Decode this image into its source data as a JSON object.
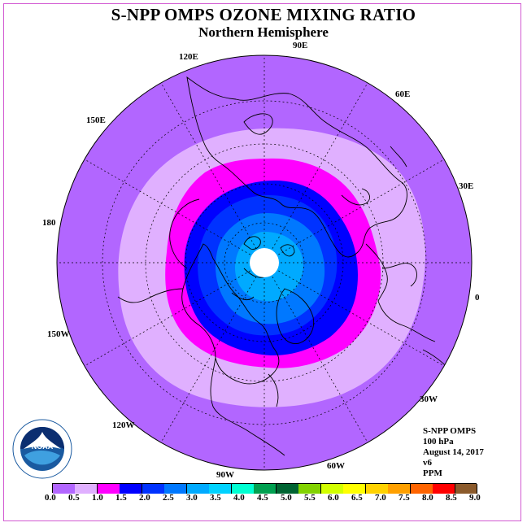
{
  "title": "S-NPP OMPS OZONE MIXING RATIO",
  "subtitle": "Northern Hemisphere",
  "longitude_labels": [
    "90E",
    "60E",
    "30E",
    "0",
    "30W",
    "60W",
    "90W",
    "120W",
    "150W",
    "180",
    "150E",
    "120E"
  ],
  "info": {
    "line1": "S-NPP OMPS",
    "line2": "100 hPa",
    "line3": "August 14, 2017",
    "line4": "v6",
    "line5": "PPM"
  },
  "logo_text": "NOAA",
  "logo_ring_text": "NATIONAL OCEANIC AND ATMOSPHERIC ADMINISTRATION · U.S. DEPARTMENT OF COMMERCE",
  "colorbar": {
    "ticks": [
      "0.0",
      "0.5",
      "1.0",
      "1.5",
      "2.0",
      "2.5",
      "3.0",
      "3.5",
      "4.0",
      "4.5",
      "5.0",
      "5.5",
      "6.0",
      "6.5",
      "7.0",
      "7.5",
      "8.0",
      "8.5",
      "9.0"
    ],
    "colors": [
      "#b266ff",
      "#e0b0ff",
      "#ff00ff",
      "#0000ff",
      "#0032ff",
      "#0078ff",
      "#00aaff",
      "#00d2ff",
      "#00ffd2",
      "#00a050",
      "#006432",
      "#82d200",
      "#d2ff00",
      "#ffff00",
      "#ffd200",
      "#ffa000",
      "#ff6400",
      "#ff0000",
      "#8b5a2b"
    ]
  },
  "ozone_bands": [
    {
      "range": "0.0-0.5",
      "color": "#b266ff"
    },
    {
      "range": "0.5-1.0",
      "color": "#e0b0ff"
    },
    {
      "range": "1.0-1.5",
      "color": "#ff00ff"
    },
    {
      "range": "1.5-2.0",
      "color": "#0000ff"
    },
    {
      "range": "2.0-2.5",
      "color": "#0032ff"
    },
    {
      "range": "2.5-3.0",
      "color": "#0078ff"
    },
    {
      "range": "3.0-3.5",
      "color": "#00aaff"
    }
  ]
}
